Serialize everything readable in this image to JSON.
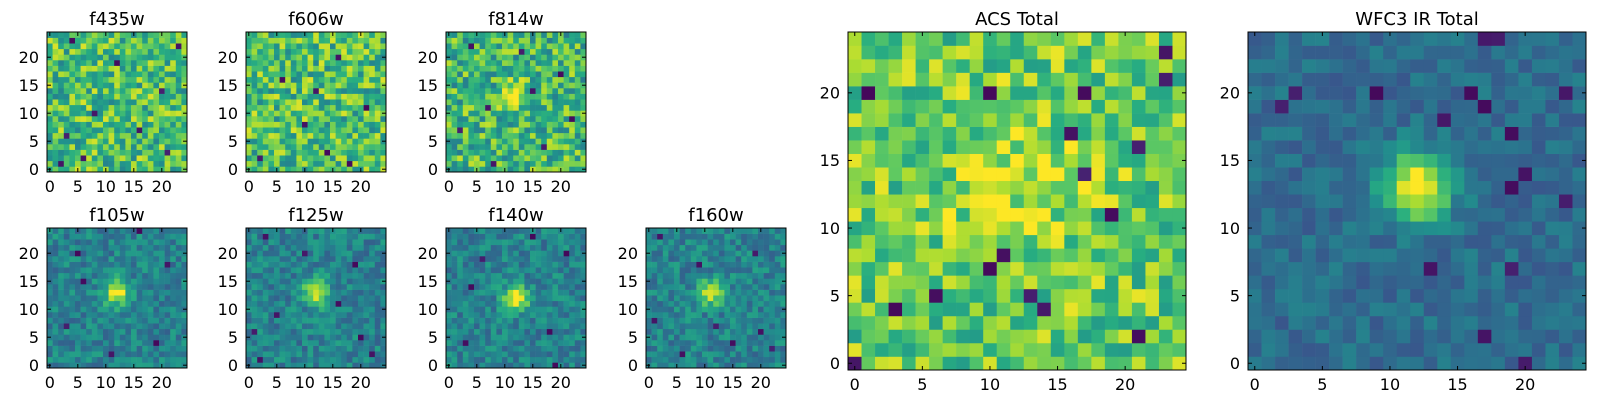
{
  "chart_data": [
    {
      "id": "f435w",
      "type": "heatmap",
      "title": "f435w",
      "grid": "25x25",
      "xlim": [
        -0.5,
        24.5
      ],
      "ylim": [
        -0.5,
        24.5
      ],
      "xticks": [
        0,
        5,
        10,
        15,
        20
      ],
      "yticks": [
        0,
        5,
        10,
        15,
        20
      ],
      "colormap": "viridis",
      "pattern": "noise",
      "peak": null,
      "dark_cells": [
        [
          4,
          23
        ],
        [
          12,
          19
        ],
        [
          20,
          14
        ],
        [
          8,
          10
        ],
        [
          3,
          6
        ],
        [
          21,
          3
        ],
        [
          6,
          2
        ],
        [
          2,
          1
        ],
        [
          16,
          7
        ],
        [
          23,
          22
        ]
      ]
    },
    {
      "id": "f606w",
      "type": "heatmap",
      "title": "f606w",
      "grid": "25x25",
      "xlim": [
        -0.5,
        24.5
      ],
      "ylim": [
        -0.5,
        24.5
      ],
      "xticks": [
        0,
        5,
        10,
        15,
        20
      ],
      "yticks": [
        0,
        5,
        10,
        15,
        20
      ],
      "colormap": "viridis",
      "pattern": "noise",
      "peak": null,
      "dark_cells": [
        [
          10,
          8
        ],
        [
          14,
          3
        ],
        [
          16,
          20
        ],
        [
          6,
          16
        ],
        [
          21,
          11
        ],
        [
          2,
          2
        ],
        [
          18,
          1
        ],
        [
          12,
          14
        ]
      ]
    },
    {
      "id": "f814w",
      "type": "heatmap",
      "title": "f814w",
      "grid": "25x25",
      "xlim": [
        -0.5,
        24.5
      ],
      "ylim": [
        -0.5,
        24.5
      ],
      "xticks": [
        0,
        5,
        10,
        15,
        20
      ],
      "yticks": [
        0,
        5,
        10,
        15,
        20
      ],
      "colormap": "viridis",
      "pattern": "faint-source",
      "peak": [
        12,
        13
      ],
      "dark_cells": [
        [
          4,
          22
        ],
        [
          13,
          21
        ],
        [
          20,
          17
        ],
        [
          7,
          11
        ],
        [
          2,
          7
        ],
        [
          17,
          4
        ],
        [
          8,
          1
        ],
        [
          22,
          9
        ],
        [
          15,
          14
        ]
      ]
    },
    {
      "id": "f105w",
      "type": "heatmap",
      "title": "f105w",
      "grid": "25x25",
      "xlim": [
        -0.5,
        24.5
      ],
      "ylim": [
        -0.5,
        24.5
      ],
      "xticks": [
        0,
        5,
        10,
        15,
        20
      ],
      "yticks": [
        0,
        5,
        10,
        15,
        20
      ],
      "colormap": "viridis",
      "pattern": "source",
      "peak": [
        12,
        13
      ],
      "dark_cells": [
        [
          16,
          24
        ],
        [
          5,
          20
        ],
        [
          21,
          18
        ],
        [
          3,
          7
        ],
        [
          19,
          4
        ],
        [
          11,
          2
        ],
        [
          6,
          15
        ]
      ]
    },
    {
      "id": "f125w",
      "type": "heatmap",
      "title": "f125w",
      "grid": "25x25",
      "xlim": [
        -0.5,
        24.5
      ],
      "ylim": [
        -0.5,
        24.5
      ],
      "xticks": [
        0,
        5,
        10,
        15,
        20
      ],
      "yticks": [
        0,
        5,
        10,
        15,
        20
      ],
      "colormap": "viridis",
      "pattern": "source",
      "peak": [
        12,
        13
      ],
      "dark_cells": [
        [
          3,
          23
        ],
        [
          10,
          20
        ],
        [
          19,
          18
        ],
        [
          1,
          6
        ],
        [
          2,
          1
        ],
        [
          20,
          5
        ],
        [
          22,
          2
        ],
        [
          16,
          11
        ],
        [
          5,
          9
        ]
      ]
    },
    {
      "id": "f140w",
      "type": "heatmap",
      "title": "f140w",
      "grid": "25x25",
      "xlim": [
        -0.5,
        24.5
      ],
      "ylim": [
        -0.5,
        24.5
      ],
      "xticks": [
        0,
        5,
        10,
        15,
        20
      ],
      "yticks": [
        0,
        5,
        10,
        15,
        20
      ],
      "colormap": "viridis",
      "pattern": "source",
      "peak": [
        12,
        12
      ],
      "dark_cells": [
        [
          15,
          23
        ],
        [
          6,
          19
        ],
        [
          21,
          20
        ],
        [
          3,
          4
        ],
        [
          18,
          6
        ],
        [
          19,
          0
        ],
        [
          4,
          14
        ]
      ]
    },
    {
      "id": "f160w",
      "type": "heatmap",
      "title": "f160w",
      "grid": "25x25",
      "xlim": [
        -0.5,
        24.5
      ],
      "ylim": [
        -0.5,
        24.5
      ],
      "xticks": [
        0,
        5,
        10,
        15,
        20
      ],
      "yticks": [
        0,
        5,
        10,
        15,
        20
      ],
      "colormap": "viridis",
      "pattern": "source",
      "peak": [
        11,
        13
      ],
      "dark_cells": [
        [
          2,
          23
        ],
        [
          9,
          18
        ],
        [
          19,
          20
        ],
        [
          1,
          8
        ],
        [
          20,
          6
        ],
        [
          22,
          3
        ],
        [
          15,
          4
        ],
        [
          6,
          2
        ],
        [
          12,
          7
        ]
      ]
    },
    {
      "id": "acs-total",
      "type": "heatmap",
      "title": "ACS Total",
      "grid": "25x25",
      "xlim": [
        -0.5,
        24.5
      ],
      "ylim": [
        -0.5,
        24.5
      ],
      "xticks": [
        0,
        5,
        10,
        15,
        20
      ],
      "yticks": [
        0,
        5,
        10,
        15,
        20
      ],
      "colormap": "viridis",
      "pattern": "acs",
      "peak": [
        12,
        13
      ],
      "dark_cells": [
        [
          0,
          0
        ],
        [
          1,
          20
        ],
        [
          10,
          20
        ],
        [
          23,
          23
        ],
        [
          23,
          21
        ],
        [
          21,
          16
        ],
        [
          17,
          14
        ],
        [
          19,
          11
        ],
        [
          16,
          17
        ],
        [
          6,
          5
        ],
        [
          13,
          5
        ],
        [
          14,
          4
        ],
        [
          11,
          8
        ],
        [
          21,
          2
        ],
        [
          10,
          7
        ],
        [
          3,
          4
        ],
        [
          17,
          20
        ]
      ]
    },
    {
      "id": "wfc3-ir-total",
      "type": "heatmap",
      "title": "WFC3 IR Total",
      "grid": "25x25",
      "xlim": [
        -0.5,
        24.5
      ],
      "ylim": [
        -0.5,
        24.5
      ],
      "xticks": [
        0,
        5,
        10,
        15,
        20
      ],
      "yticks": [
        0,
        5,
        10,
        15,
        20
      ],
      "colormap": "viridis",
      "pattern": "wfc3",
      "peak": [
        12,
        13
      ],
      "dark_cells": [
        [
          2,
          19
        ],
        [
          3,
          20
        ],
        [
          17,
          24
        ],
        [
          18,
          24
        ],
        [
          16,
          20
        ],
        [
          17,
          19
        ],
        [
          14,
          18
        ],
        [
          23,
          20
        ],
        [
          19,
          17
        ],
        [
          23,
          12
        ],
        [
          19,
          13
        ],
        [
          20,
          14
        ],
        [
          20,
          0
        ],
        [
          19,
          7
        ],
        [
          17,
          2
        ],
        [
          9,
          20
        ],
        [
          13,
          7
        ]
      ]
    }
  ]
}
